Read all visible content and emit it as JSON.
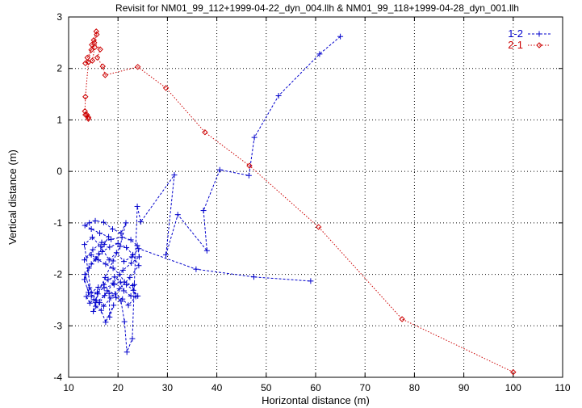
{
  "chart_data": {
    "type": "line",
    "title": "Revisit for NM01_99_112+1999-04-22_dyn_004.llh & NM01_99_118+1999-04-28_dyn_001.llh",
    "xlabel": "Horizontal distance (m)",
    "ylabel": "Vertical distance (m)",
    "xlim": [
      10,
      110
    ],
    "ylim": [
      -4,
      3
    ],
    "xticks": [
      "10",
      "20",
      "30",
      "40",
      "50",
      "60",
      "70",
      "80",
      "90",
      "100",
      "110"
    ],
    "yticks": [
      "-4",
      "-3",
      "-2",
      "-1",
      "0",
      "1",
      "2",
      "3"
    ],
    "grid": true,
    "legend_position": "top-right",
    "series": [
      {
        "name": "1-2",
        "color": "#0000cc",
        "marker": "plus",
        "points": [
          [
            65.0,
            2.62
          ],
          [
            60.8,
            2.28
          ],
          [
            52.5,
            1.47
          ],
          [
            47.6,
            0.66
          ],
          [
            46.5,
            -0.08
          ],
          [
            40.6,
            0.03
          ],
          [
            37.3,
            -0.76
          ],
          [
            38.0,
            -1.54
          ],
          [
            32.1,
            -0.84
          ],
          [
            29.7,
            -1.62
          ],
          [
            31.4,
            -0.07
          ],
          [
            24.6,
            -0.98
          ],
          [
            23.9,
            -0.68
          ],
          [
            23.3,
            -2.2
          ],
          [
            22.9,
            -3.25
          ],
          [
            21.8,
            -3.51
          ],
          [
            21.3,
            -2.92
          ],
          [
            20.6,
            -2.52
          ],
          [
            19.6,
            -2.45
          ],
          [
            18.2,
            -2.37
          ],
          [
            18.3,
            -2.83
          ],
          [
            19.1,
            -2.6
          ],
          [
            17.5,
            -2.93
          ],
          [
            16.6,
            -2.7
          ],
          [
            15.5,
            -2.62
          ],
          [
            15.1,
            -2.49
          ],
          [
            14.3,
            -2.56
          ],
          [
            13.6,
            -2.43
          ],
          [
            14.6,
            -2.35
          ],
          [
            16.0,
            -2.25
          ],
          [
            17.1,
            -2.2
          ],
          [
            18.0,
            -2.1
          ],
          [
            19.3,
            -2.05
          ],
          [
            20.5,
            -2.15
          ],
          [
            21.2,
            -2.32
          ],
          [
            22.6,
            -2.42
          ],
          [
            24.0,
            -2.42
          ],
          [
            23.1,
            -2.31
          ],
          [
            21.7,
            -2.2
          ],
          [
            20.3,
            -2.0
          ],
          [
            19.0,
            -1.88
          ],
          [
            17.5,
            -1.8
          ],
          [
            16.0,
            -1.72
          ],
          [
            14.6,
            -1.62
          ],
          [
            13.2,
            -1.72
          ],
          [
            14.9,
            -1.52
          ],
          [
            16.7,
            -1.38
          ],
          [
            18.6,
            -1.32
          ],
          [
            20.8,
            -1.28
          ],
          [
            22.6,
            -1.33
          ],
          [
            23.9,
            -1.44
          ],
          [
            24.3,
            -1.66
          ],
          [
            22.7,
            -1.78
          ],
          [
            21.0,
            -1.92
          ],
          [
            19.0,
            -2.17
          ],
          [
            17.3,
            -2.41
          ],
          [
            15.5,
            -2.55
          ],
          [
            14.0,
            -2.35
          ],
          [
            13.2,
            -2.1
          ],
          [
            14.1,
            -1.88
          ],
          [
            15.5,
            -1.7
          ],
          [
            16.8,
            -1.56
          ],
          [
            18.3,
            -1.47
          ],
          [
            20.0,
            -1.4
          ],
          [
            21.7,
            -1.48
          ],
          [
            23.0,
            -1.62
          ],
          [
            24.2,
            -1.83
          ],
          [
            22.4,
            -2.06
          ],
          [
            20.3,
            -2.28
          ],
          [
            18.5,
            -2.46
          ],
          [
            17.1,
            -2.62
          ],
          [
            15.6,
            -2.5
          ],
          [
            14.2,
            -2.26
          ],
          [
            13.3,
            -2.0
          ],
          [
            14.6,
            -1.8
          ],
          [
            16.1,
            -1.6
          ],
          [
            17.2,
            -1.42
          ],
          [
            18.1,
            -1.27
          ],
          [
            16.3,
            -1.2
          ],
          [
            14.6,
            -1.12
          ],
          [
            13.3,
            -1.05
          ],
          [
            14.2,
            -1.0
          ],
          [
            15.4,
            -0.96
          ],
          [
            17.1,
            -0.99
          ],
          [
            18.9,
            -1.12
          ],
          [
            20.6,
            -1.2
          ],
          [
            21.6,
            -1.0
          ],
          [
            20.4,
            -1.46
          ],
          [
            19.0,
            -1.74
          ],
          [
            17.4,
            -2.06
          ],
          [
            15.9,
            -2.38
          ],
          [
            15.0,
            -2.72
          ],
          [
            16.3,
            -2.55
          ],
          [
            17.8,
            -2.32
          ],
          [
            19.4,
            -2.38
          ],
          [
            20.9,
            -2.48
          ],
          [
            22.1,
            -2.6
          ],
          [
            23.6,
            -2.43
          ],
          [
            23.0,
            -2.22
          ],
          [
            21.3,
            -2.15
          ],
          [
            19.2,
            -2.2
          ],
          [
            17.2,
            -2.26
          ],
          [
            15.8,
            -2.35
          ],
          [
            14.6,
            -2.42
          ],
          [
            13.2,
            -1.42
          ],
          [
            14.8,
            -1.28
          ],
          [
            16.5,
            -1.46
          ],
          [
            18.2,
            -1.72
          ],
          [
            19.7,
            -1.58
          ],
          [
            21.2,
            -1.75
          ],
          [
            22.8,
            -1.66
          ],
          [
            24.2,
            -1.5
          ],
          [
            35.8,
            -1.9
          ],
          [
            47.5,
            -2.05
          ],
          [
            59.0,
            -2.13
          ]
        ]
      },
      {
        "name": "2-1",
        "color": "#cc0000",
        "marker": "diamond",
        "points": [
          [
            100.0,
            -3.9
          ],
          [
            77.5,
            -2.87
          ],
          [
            60.6,
            -1.08
          ],
          [
            46.6,
            0.11
          ],
          [
            37.6,
            0.76
          ],
          [
            29.7,
            1.62
          ],
          [
            24.0,
            2.03
          ],
          [
            17.4,
            1.87
          ],
          [
            16.9,
            2.04
          ],
          [
            15.8,
            2.21
          ],
          [
            16.4,
            2.37
          ],
          [
            15.2,
            2.5
          ],
          [
            15.7,
            2.66
          ],
          [
            15.6,
            2.72
          ],
          [
            15.1,
            2.55
          ],
          [
            14.6,
            2.36
          ],
          [
            13.8,
            2.21
          ],
          [
            13.4,
            2.1
          ],
          [
            14.8,
            2.15
          ],
          [
            15.3,
            2.41
          ],
          [
            14.7,
            2.46
          ],
          [
            14.0,
            2.12
          ],
          [
            13.4,
            1.45
          ],
          [
            13.3,
            1.17
          ],
          [
            13.7,
            1.1
          ],
          [
            14.0,
            1.05
          ],
          [
            13.4,
            1.1
          ],
          [
            14.0,
            1.02
          ]
        ]
      }
    ]
  }
}
